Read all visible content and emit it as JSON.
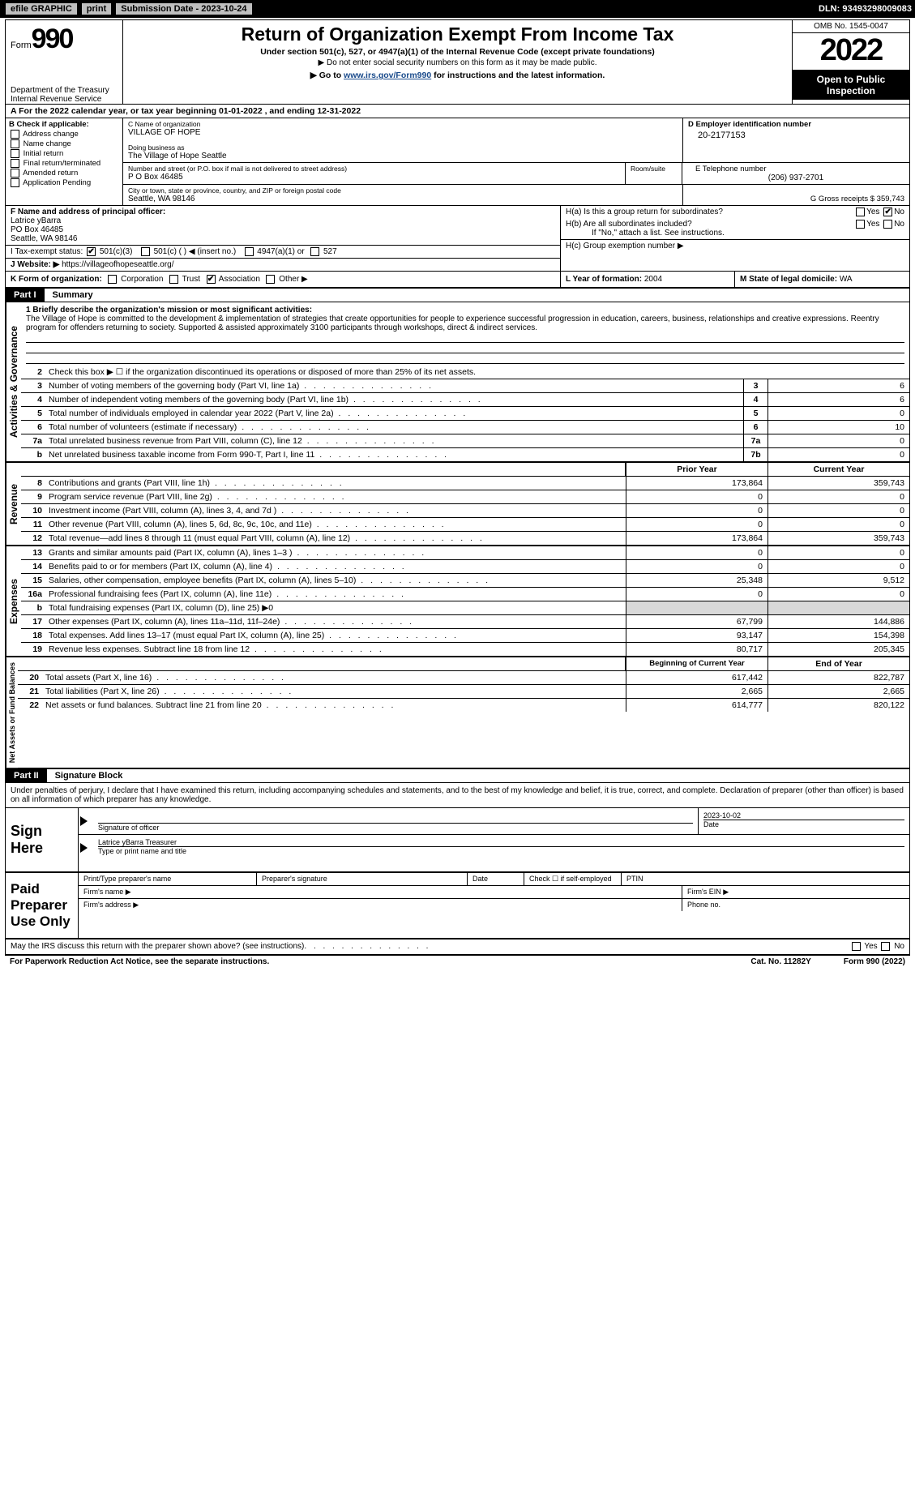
{
  "topbar": {
    "efile": "efile GRAPHIC",
    "print": "print",
    "subdate_label": "Submission Date - 2023-10-24",
    "dln": "DLN: 93493298009083"
  },
  "header": {
    "form_prefix": "Form",
    "form_num": "990",
    "title": "Return of Organization Exempt From Income Tax",
    "subtitle": "Under section 501(c), 527, or 4947(a)(1) of the Internal Revenue Code (except private foundations)",
    "note1": "▶ Do not enter social security numbers on this form as it may be made public.",
    "note2_pre": "▶ Go to ",
    "note2_link": "www.irs.gov/Form990",
    "note2_post": " for instructions and the latest information.",
    "dept1": "Department of the Treasury",
    "dept2": "Internal Revenue Service",
    "omb": "OMB No. 1545-0047",
    "year": "2022",
    "open1": "Open to Public",
    "open2": "Inspection"
  },
  "row_a": "A For the 2022 calendar year, or tax year beginning 01-01-2022    , and ending 12-31-2022",
  "col_b": {
    "header": "B Check if applicable:",
    "items": [
      "Address change",
      "Name change",
      "Initial return",
      "Final return/terminated",
      "Amended return",
      "Application Pending"
    ]
  },
  "col_c": {
    "c_label": "C Name of organization",
    "c_val": "VILLAGE OF HOPE",
    "dba_label": "Doing business as",
    "dba_val": "The Village of Hope Seattle",
    "addr_label": "Number and street (or P.O. box if mail is not delivered to street address)",
    "room_label": "Room/suite",
    "addr_val": "P O Box 46485",
    "city_label": "City or town, state or province, country, and ZIP or foreign postal code",
    "city_val": "Seattle, WA  98146"
  },
  "col_de": {
    "d_label": "D Employer identification number",
    "d_val": "20-2177153",
    "e_label": "E Telephone number",
    "e_val": "(206) 937-2701",
    "g_label": "G Gross receipts $",
    "g_val": "359,743"
  },
  "f_block": {
    "f_label": "F  Name and address of principal officer:",
    "f_name": "Latrice yBarra",
    "f_addr1": "PO Box 46485",
    "f_addr2": "Seattle, WA  98146",
    "i_label": "I  Tax-exempt status:",
    "i_501c3": "501(c)(3)",
    "i_501c": "501(c) (  ) ◀ (insert no.)",
    "i_4947": "4947(a)(1) or",
    "i_527": "527",
    "j_label": "J  Website: ▶",
    "j_val": "  https://villageofhopeseattle.org/"
  },
  "h_block": {
    "ha": "H(a)  Is this a group return for subordinates?",
    "hb": "H(b)  Are all subordinates included?",
    "hb_note": "If \"No,\" attach a list. See instructions.",
    "hc": "H(c)  Group exemption number ▶",
    "yes": "Yes",
    "no": "No"
  },
  "kl": {
    "k": "K Form of organization:",
    "k_corp": "Corporation",
    "k_trust": "Trust",
    "k_assoc": "Association",
    "k_other": "Other ▶",
    "l_label": "L Year of formation:",
    "l_val": "2004",
    "m_label": "M State of legal domicile:",
    "m_val": "WA"
  },
  "part1": {
    "tag": "Part I",
    "title": "Summary",
    "vtab_ag": "Activities & Governance",
    "vtab_rev": "Revenue",
    "vtab_exp": "Expenses",
    "vtab_na": "Net Assets or Fund Balances",
    "line1_label": "1  Briefly describe the organization's mission or most significant activities:",
    "line1_text": "The Village of Hope is committed to the development & implementation of strategies that create opportunities for people to experience successful progression in education, careers, business, relationships and creative expressions. Reentry program for offenders returning to society. Supported & assisted approximately 3100 participants through workshops, direct & indirect services.",
    "line2": "Check this box ▶ ☐  if the organization discontinued its operations or disposed of more than 25% of its net assets.",
    "rows_ag": [
      {
        "n": "3",
        "d": "Number of voting members of the governing body (Part VI, line 1a)",
        "bn": "3",
        "v": "6"
      },
      {
        "n": "4",
        "d": "Number of independent voting members of the governing body (Part VI, line 1b)",
        "bn": "4",
        "v": "6"
      },
      {
        "n": "5",
        "d": "Total number of individuals employed in calendar year 2022 (Part V, line 2a)",
        "bn": "5",
        "v": "0"
      },
      {
        "n": "6",
        "d": "Total number of volunteers (estimate if necessary)",
        "bn": "6",
        "v": "10"
      },
      {
        "n": "7a",
        "d": "Total unrelated business revenue from Part VIII, column (C), line 12",
        "bn": "7a",
        "v": "0"
      },
      {
        "n": "b",
        "d": "Net unrelated business taxable income from Form 990-T, Part I, line 11",
        "bn": "7b",
        "v": "0"
      }
    ],
    "hdr_prior": "Prior Year",
    "hdr_curr": "Current Year",
    "rows_rev": [
      {
        "n": "8",
        "d": "Contributions and grants (Part VIII, line 1h)",
        "p": "173,864",
        "c": "359,743"
      },
      {
        "n": "9",
        "d": "Program service revenue (Part VIII, line 2g)",
        "p": "0",
        "c": "0"
      },
      {
        "n": "10",
        "d": "Investment income (Part VIII, column (A), lines 3, 4, and 7d )",
        "p": "0",
        "c": "0"
      },
      {
        "n": "11",
        "d": "Other revenue (Part VIII, column (A), lines 5, 6d, 8c, 9c, 10c, and 11e)",
        "p": "0",
        "c": "0"
      },
      {
        "n": "12",
        "d": "Total revenue—add lines 8 through 11 (must equal Part VIII, column (A), line 12)",
        "p": "173,864",
        "c": "359,743"
      }
    ],
    "rows_exp": [
      {
        "n": "13",
        "d": "Grants and similar amounts paid (Part IX, column (A), lines 1–3 )",
        "p": "0",
        "c": "0"
      },
      {
        "n": "14",
        "d": "Benefits paid to or for members (Part IX, column (A), line 4)",
        "p": "0",
        "c": "0"
      },
      {
        "n": "15",
        "d": "Salaries, other compensation, employee benefits (Part IX, column (A), lines 5–10)",
        "p": "25,348",
        "c": "9,512"
      },
      {
        "n": "16a",
        "d": "Professional fundraising fees (Part IX, column (A), line 11e)",
        "p": "0",
        "c": "0"
      }
    ],
    "row_16b": "Total fundraising expenses (Part IX, column (D), line 25) ▶0",
    "rows_exp2": [
      {
        "n": "17",
        "d": "Other expenses (Part IX, column (A), lines 11a–11d, 11f–24e)",
        "p": "67,799",
        "c": "144,886"
      },
      {
        "n": "18",
        "d": "Total expenses. Add lines 13–17 (must equal Part IX, column (A), line 25)",
        "p": "93,147",
        "c": "154,398"
      },
      {
        "n": "19",
        "d": "Revenue less expenses. Subtract line 18 from line 12",
        "p": "80,717",
        "c": "205,345"
      }
    ],
    "hdr_beg": "Beginning of Current Year",
    "hdr_end": "End of Year",
    "rows_na": [
      {
        "n": "20",
        "d": "Total assets (Part X, line 16)",
        "p": "617,442",
        "c": "822,787"
      },
      {
        "n": "21",
        "d": "Total liabilities (Part X, line 26)",
        "p": "2,665",
        "c": "2,665"
      },
      {
        "n": "22",
        "d": "Net assets or fund balances. Subtract line 21 from line 20",
        "p": "614,777",
        "c": "820,122"
      }
    ]
  },
  "part2": {
    "tag": "Part II",
    "title": "Signature Block",
    "decl": "Under penalties of perjury, I declare that I have examined this return, including accompanying schedules and statements, and to the best of my knowledge and belief, it is true, correct, and complete. Declaration of preparer (other than officer) is based on all information of which preparer has any knowledge.",
    "sign_here": "Sign Here",
    "sig_officer": "Signature of officer",
    "sig_date": "Date",
    "sig_date_val": "2023-10-02",
    "sig_name": "Latrice yBarra Treasurer",
    "sig_name_lbl": "Type or print name and title",
    "paid": "Paid Preparer Use Only",
    "pp_name": "Print/Type preparer's name",
    "pp_sig": "Preparer's signature",
    "pp_date": "Date",
    "pp_check": "Check ☐ if self-employed",
    "pp_ptin": "PTIN",
    "pp_firm": "Firm's name   ▶",
    "pp_ein": "Firm's EIN ▶",
    "pp_addr": "Firm's address ▶",
    "pp_phone": "Phone no.",
    "may_irs": "May the IRS discuss this return with the preparer shown above? (see instructions)"
  },
  "footer": {
    "pra": "For Paperwork Reduction Act Notice, see the separate instructions.",
    "cat": "Cat. No. 11282Y",
    "form": "Form 990 (2022)"
  }
}
